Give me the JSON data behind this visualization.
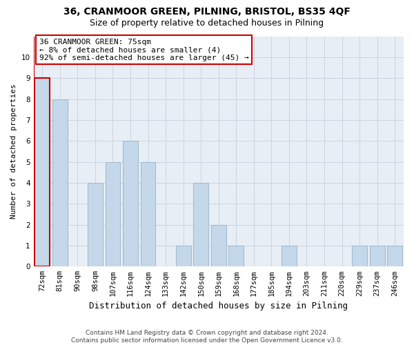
{
  "title1": "36, CRANMOOR GREEN, PILNING, BRISTOL, BS35 4QF",
  "title2": "Size of property relative to detached houses in Pilning",
  "xlabel": "Distribution of detached houses by size in Pilning",
  "ylabel": "Number of detached properties",
  "categories": [
    "72sqm",
    "81sqm",
    "90sqm",
    "98sqm",
    "107sqm",
    "116sqm",
    "124sqm",
    "133sqm",
    "142sqm",
    "150sqm",
    "159sqm",
    "168sqm",
    "177sqm",
    "185sqm",
    "194sqm",
    "203sqm",
    "211sqm",
    "220sqm",
    "229sqm",
    "237sqm",
    "246sqm"
  ],
  "values": [
    9,
    8,
    0,
    4,
    5,
    6,
    5,
    0,
    1,
    4,
    2,
    1,
    0,
    0,
    1,
    0,
    0,
    0,
    1,
    1,
    1
  ],
  "bar_color": "#c5d8ea",
  "bar_edge_color": "#a0bcd0",
  "highlight_bar_index": 0,
  "highlight_edge_color": "#cc0000",
  "annotation_box_text": "36 CRANMOOR GREEN: 75sqm\n← 8% of detached houses are smaller (4)\n92% of semi-detached houses are larger (45) →",
  "annotation_box_color": "#ffffff",
  "annotation_box_edge_color": "#cc0000",
  "ylim": [
    0,
    11
  ],
  "yticks": [
    0,
    1,
    2,
    3,
    4,
    5,
    6,
    7,
    8,
    9,
    10,
    11
  ],
  "grid_color": "#c8d0dc",
  "bg_color": "#e8eef5",
  "footer_text": "Contains HM Land Registry data © Crown copyright and database right 2024.\nContains public sector information licensed under the Open Government Licence v3.0.",
  "title1_fontsize": 10,
  "title2_fontsize": 9,
  "xlabel_fontsize": 9,
  "ylabel_fontsize": 8,
  "tick_fontsize": 7.5,
  "annotation_fontsize": 8,
  "footer_fontsize": 6.5
}
